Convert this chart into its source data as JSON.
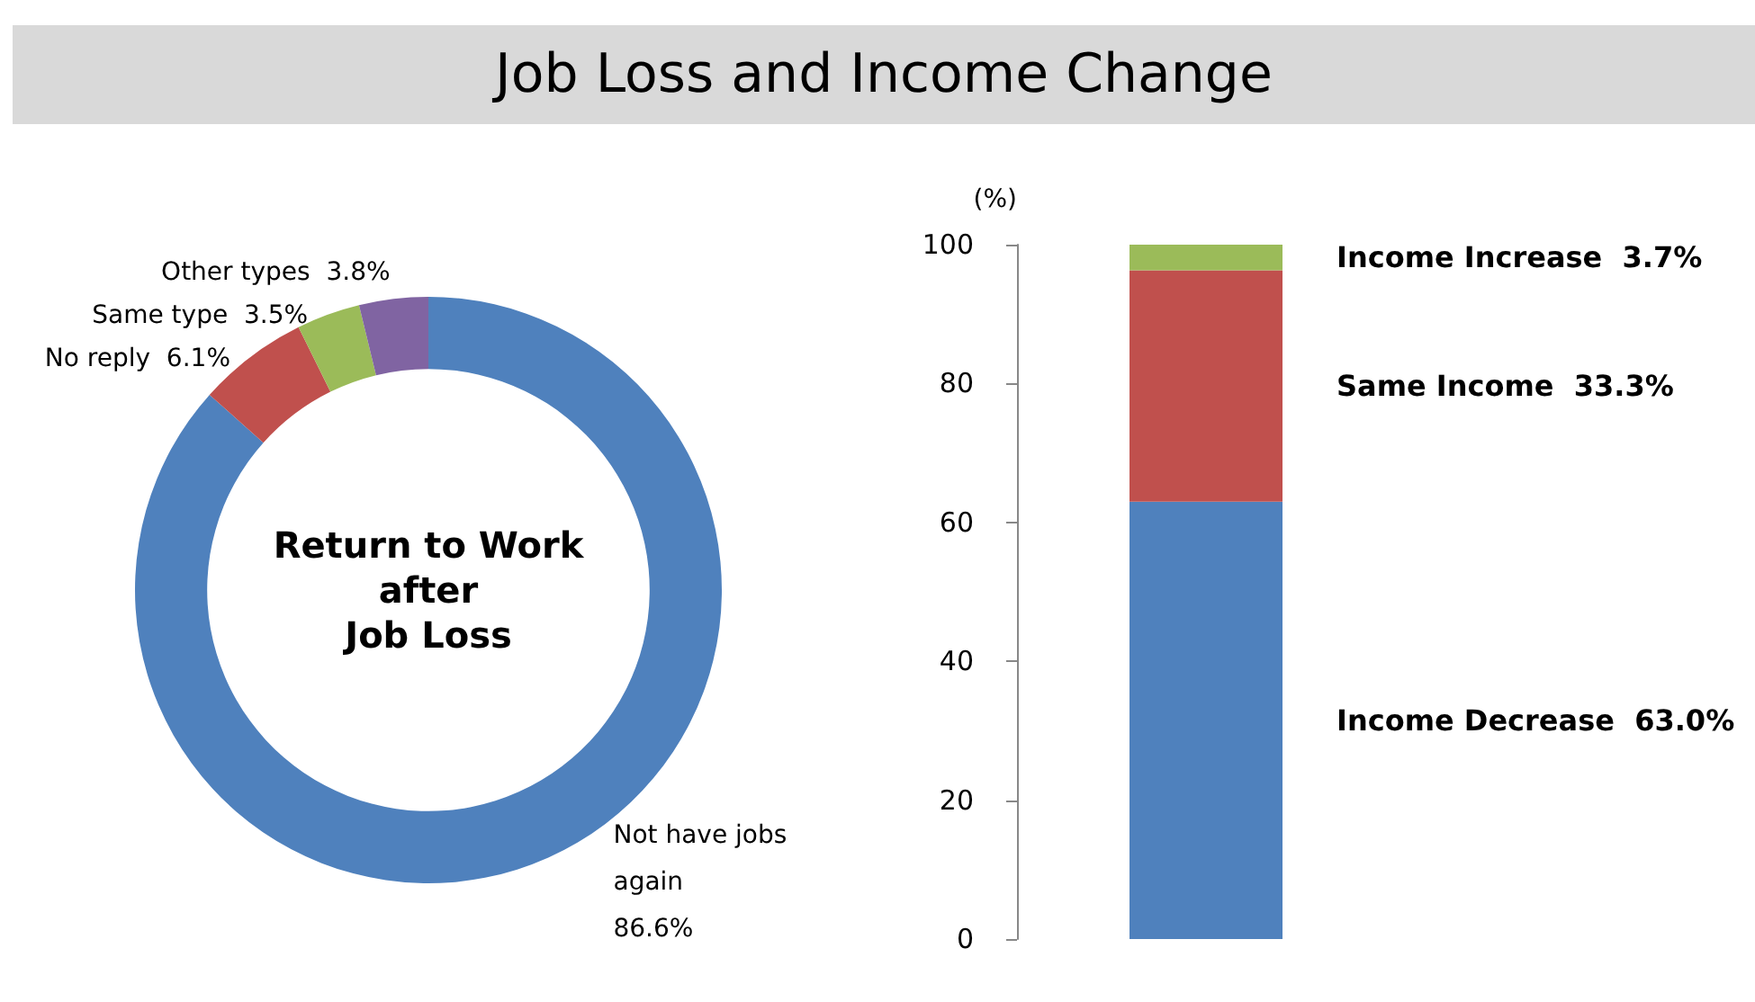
{
  "chart_data": [
    {
      "type": "donut",
      "title": "Job Loss and Income Change",
      "annotations": [
        "Return to Work\nafter\nJob Loss"
      ],
      "categories": [
        "Not have jobs again",
        "No reply",
        "Same type",
        "Other types"
      ],
      "values": [
        86.6,
        6.1,
        3.5,
        3.8
      ],
      "value_labels": [
        "86.6%",
        "6.1%",
        "3.5%",
        "3.8%"
      ],
      "colors": [
        "#4f81bd",
        "#c0504d",
        "#9bbb59",
        "#8064a2"
      ]
    },
    {
      "type": "bar",
      "stacked": true,
      "ylabel": "(%)",
      "categories": [
        null
      ],
      "ylim": [
        0,
        100
      ],
      "yticks": [
        0,
        20,
        40,
        60,
        80,
        100
      ],
      "series": [
        {
          "name": "Income Decrease",
          "color": "#4f81bd",
          "values": [
            63.0
          ],
          "value_labels": [
            "63.0%"
          ]
        },
        {
          "name": "Same Income",
          "color": "#c0504d",
          "values": [
            33.3
          ],
          "value_labels": [
            "33.3%"
          ]
        },
        {
          "name": "Income Increase",
          "color": "#9bbb59",
          "values": [
            3.7
          ],
          "value_labels": [
            "3.7%"
          ]
        }
      ]
    }
  ]
}
